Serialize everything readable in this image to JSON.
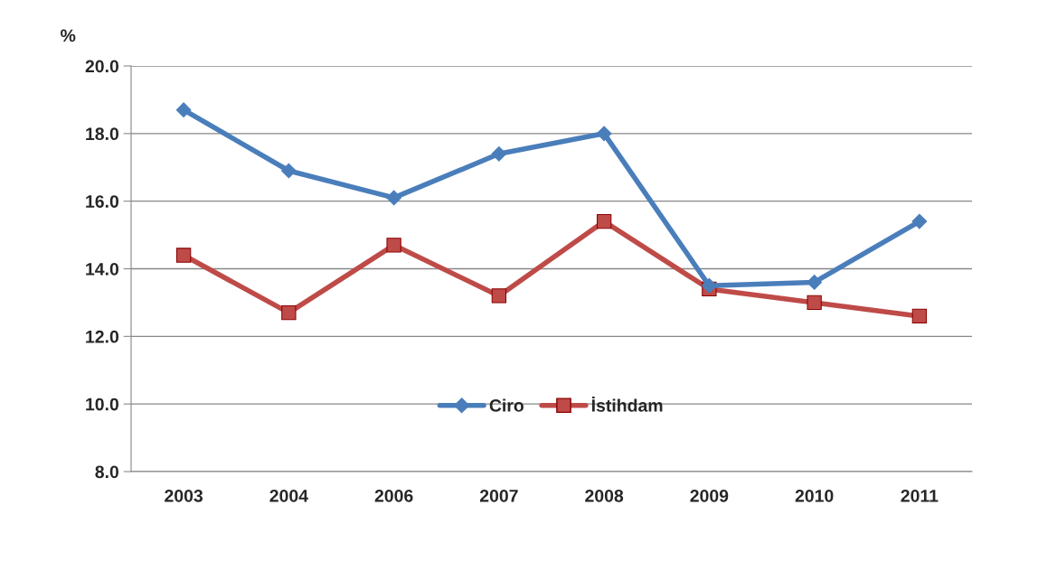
{
  "chart_data": {
    "type": "line",
    "ylabel": "%",
    "categories": [
      "2003",
      "2004",
      "2006",
      "2007",
      "2008",
      "2009",
      "2010",
      "2011"
    ],
    "series": [
      {
        "name": "Ciro",
        "color": "#4a7ebb",
        "marker": "diamond",
        "values": [
          18.7,
          16.9,
          16.1,
          17.4,
          18.0,
          13.5,
          13.6,
          15.4
        ]
      },
      {
        "name": "İstihdam",
        "color": "#be4b48",
        "marker": "square",
        "values": [
          14.4,
          12.7,
          14.7,
          13.2,
          15.4,
          13.4,
          13.0,
          12.6
        ]
      }
    ],
    "ylim": [
      8,
      20
    ],
    "yticks": [
      {
        "value": 8,
        "label": "8.0"
      },
      {
        "value": 10,
        "label": "10.0"
      },
      {
        "value": 12,
        "label": "12.0"
      },
      {
        "value": 14,
        "label": "14.0"
      },
      {
        "value": 16,
        "label": "16.0"
      },
      {
        "value": 18,
        "label": "18.0"
      },
      {
        "value": 20,
        "label": "20.0"
      }
    ],
    "grid": "y",
    "legend": "bottom",
    "line_style": "solid"
  }
}
